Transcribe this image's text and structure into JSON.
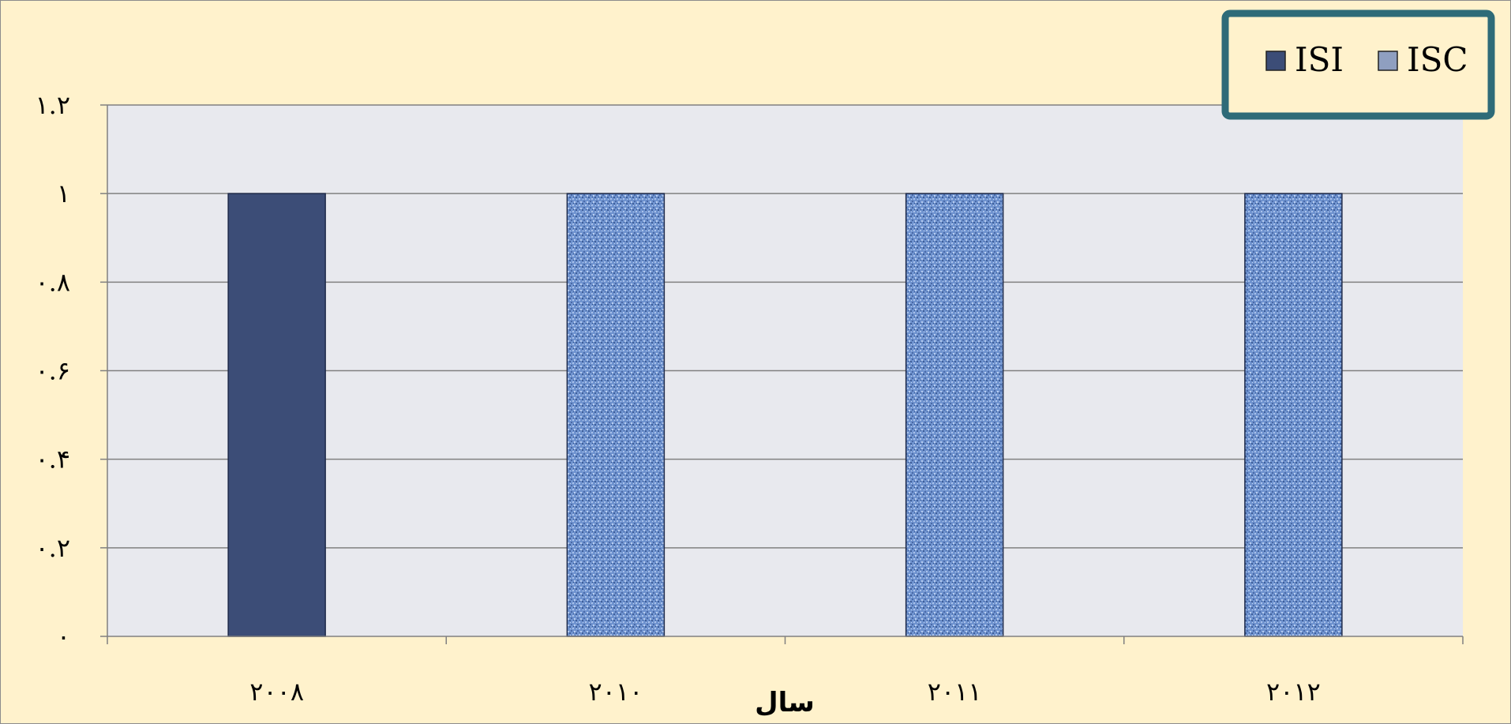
{
  "chart_data": {
    "type": "bar",
    "categories": [
      "۲۰۰۸",
      "۲۰۱۰",
      "۲۰۱۱",
      "۲۰۱۲"
    ],
    "series": [
      {
        "name": "ISI",
        "values": [
          1,
          0,
          0,
          0
        ],
        "color": "#3c4d77"
      },
      {
        "name": "ISC",
        "values": [
          0,
          1,
          1,
          1
        ],
        "color": "#6f93cf"
      }
    ],
    "y_ticks": [
      "۰",
      "۰.۲",
      "۰.۴",
      "۰.۶",
      "۰.۸",
      "۱",
      "۱.۲"
    ],
    "y_tick_values": [
      0,
      0.2,
      0.4,
      0.6,
      0.8,
      1,
      1.2
    ],
    "ylim": [
      0,
      1.2
    ],
    "xlabel": "سال",
    "ylabel": "",
    "title": "",
    "grid": true,
    "legend_position": "top-right",
    "colors": {
      "background": "#fff2cc",
      "plot_area": "#e8e9ee",
      "legend_border": "#2e6b78",
      "gridline": "#808080"
    }
  }
}
